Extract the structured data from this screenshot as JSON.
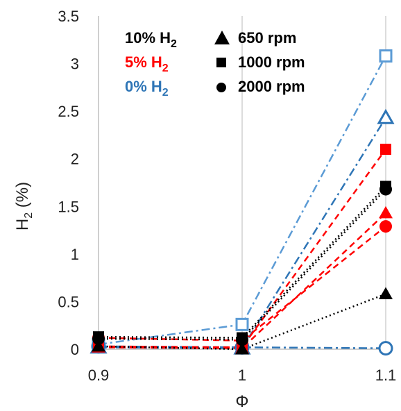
{
  "chart_data": {
    "type": "scatter",
    "title": "",
    "xlabel": "Φ",
    "ylabel": "H₂ (%)",
    "ylabel_main": "H",
    "ylabel_sub": "2",
    "ylabel_unit": " (%)",
    "x": [
      0.9,
      1.0,
      1.1
    ],
    "xticks": [
      "0.9",
      "1",
      "1.1"
    ],
    "yticks": [
      "0",
      "0.5",
      "1",
      "1.5",
      "2",
      "2.5",
      "3",
      "3.5"
    ],
    "ylim": [
      0,
      3.5
    ],
    "xlim": [
      0.9,
      1.1
    ],
    "grid": "vertical",
    "legend_placement": "top-left",
    "legend": {
      "hydrogen": [
        {
          "label_main": "10% H",
          "label_sub": "2",
          "color": "#000000"
        },
        {
          "label_main": "5% H",
          "label_sub": "2",
          "color": "#ff0000"
        },
        {
          "label_main": "0% H",
          "label_sub": "2",
          "color": "#2e75b6"
        }
      ],
      "speed": [
        {
          "label": "650 rpm",
          "marker": "triangle"
        },
        {
          "label": "1000 rpm",
          "marker": "square"
        },
        {
          "label": "2000 rpm",
          "marker": "circle"
        }
      ]
    },
    "series": [
      {
        "h2": "0%",
        "rpm": 650,
        "marker": "triangle",
        "color": "#2e75b6",
        "fill": "none",
        "line": "dashdot",
        "values": [
          0.02,
          0.01,
          2.43
        ]
      },
      {
        "h2": "0%",
        "rpm": 1000,
        "marker": "square",
        "color": "#5b9bd5",
        "fill": "none",
        "line": "dashdot",
        "values": [
          0.05,
          0.26,
          3.08
        ]
      },
      {
        "h2": "0%",
        "rpm": 2000,
        "marker": "circle",
        "color": "#2e75b6",
        "fill": "none",
        "line": "dashdot",
        "values": [
          0.03,
          0.02,
          0.01
        ]
      },
      {
        "h2": "5%",
        "rpm": 650,
        "marker": "triangle",
        "color": "#ff0000",
        "fill": "solid",
        "line": "dashed",
        "values": [
          0.02,
          0.01,
          1.43
        ]
      },
      {
        "h2": "5%",
        "rpm": 1000,
        "marker": "square",
        "color": "#ff0000",
        "fill": "solid",
        "line": "dashed",
        "values": [
          0.03,
          0.02,
          2.1
        ]
      },
      {
        "h2": "5%",
        "rpm": 2000,
        "marker": "circle",
        "color": "#ff0000",
        "fill": "solid",
        "line": "dashed",
        "values": [
          0.12,
          0.09,
          1.29
        ]
      },
      {
        "h2": "10%",
        "rpm": 650,
        "marker": "triangle",
        "color": "#000000",
        "fill": "solid",
        "line": "dotted",
        "values": [
          0.03,
          0.0,
          0.58
        ]
      },
      {
        "h2": "10%",
        "rpm": 1000,
        "marker": "square",
        "color": "#000000",
        "fill": "solid",
        "line": "dotted",
        "values": [
          0.13,
          0.12,
          1.71
        ]
      },
      {
        "h2": "10%",
        "rpm": 2000,
        "marker": "circle",
        "color": "#000000",
        "fill": "solid",
        "line": "dotted",
        "values": [
          0.11,
          0.1,
          1.68
        ]
      }
    ]
  }
}
